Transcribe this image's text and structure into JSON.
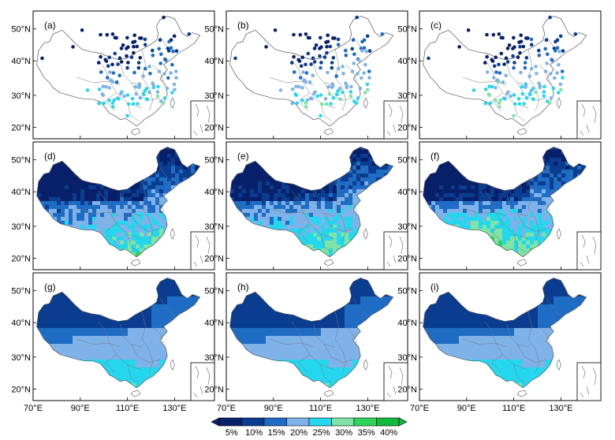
{
  "panels": [
    {
      "label": "(a)",
      "kind": "points"
    },
    {
      "label": "(b)",
      "kind": "points"
    },
    {
      "label": "(c)",
      "kind": "points"
    },
    {
      "label": "(d)",
      "kind": "grid"
    },
    {
      "label": "(e)",
      "kind": "grid"
    },
    {
      "label": "(f)",
      "kind": "grid"
    },
    {
      "label": "(g)",
      "kind": "smooth"
    },
    {
      "label": "(h)",
      "kind": "smooth"
    },
    {
      "label": "(i)",
      "kind": "smooth"
    }
  ],
  "lat_ticks": [
    "50°N",
    "40°N",
    "30°N",
    "20°N"
  ],
  "lon_ticks": [
    "70°E",
    "90°E",
    "110°E",
    "130°E"
  ],
  "colorbar": {
    "labels": [
      "5%",
      "10%",
      "15%",
      "20%",
      "25%",
      "30%",
      "35%",
      "40%"
    ],
    "colors": [
      "#08206a",
      "#0a3d8f",
      "#1f6cc4",
      "#7fb2e8",
      "#24d7ee",
      "#7ee3a4",
      "#2ed35a",
      "#12b93c"
    ]
  }
}
